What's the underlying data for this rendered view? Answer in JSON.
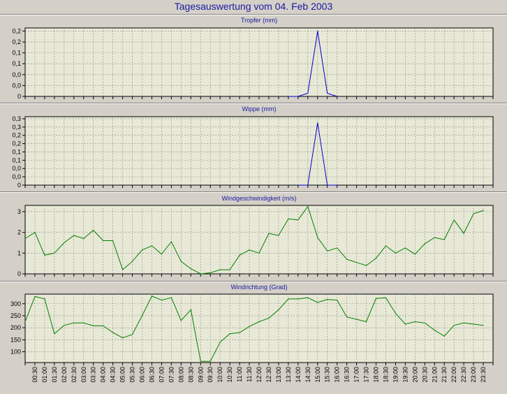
{
  "title": "Tagesauswertung vom 04. Feb 2003",
  "colors": {
    "background": "#d4d0c8",
    "plot_area": "#e8e8d6",
    "precip_line": "#0000cc",
    "wind_line": "#008000",
    "title_text": "#1a1aa0"
  },
  "chart_data": [
    {
      "type": "line",
      "title": "Tropfer (mm)",
      "y_tick_labels": [
        "0",
        "0,0",
        "0,0",
        "0,1",
        "0,1",
        "0,2",
        "0,2"
      ],
      "ylim": [
        0,
        0.22
      ],
      "grid": true,
      "series": [
        {
          "x": [
            "13:30",
            "14:00",
            "14:30",
            "15:00",
            "15:30",
            "16:00"
          ],
          "values": [
            0,
            0,
            0.01,
            0.21,
            0.01,
            0
          ]
        }
      ]
    },
    {
      "type": "line",
      "title": "Wippe (mm)",
      "y_tick_labels": [
        "0",
        "0,0",
        "0,0",
        "0,1",
        "0,1",
        "0,2",
        "0,2",
        "0,3",
        "0,3"
      ],
      "ylim": [
        0,
        0.33
      ],
      "grid": true,
      "series": [
        {
          "x": [
            "14:00",
            "14:30",
            "15:00",
            "15:30",
            "16:00"
          ],
          "values": [
            0,
            0,
            0.3,
            0,
            0
          ]
        }
      ]
    },
    {
      "type": "line",
      "title": "Windgeschwindigkeit (m/s)",
      "y_tick_labels": [
        "0",
        "1",
        "2",
        "3"
      ],
      "ylim": [
        0,
        3.3
      ],
      "grid": true,
      "series": [
        {
          "x": [
            "00:00",
            "00:30",
            "01:00",
            "01:30",
            "02:00",
            "02:30",
            "03:00",
            "03:30",
            "04:00",
            "04:30",
            "05:00",
            "05:30",
            "06:00",
            "06:30",
            "07:00",
            "07:30",
            "08:00",
            "08:30",
            "09:00",
            "09:30",
            "10:00",
            "10:30",
            "11:00",
            "11:30",
            "12:00",
            "12:30",
            "13:00",
            "13:30",
            "14:00",
            "14:30",
            "15:00",
            "15:30",
            "16:00",
            "16:30",
            "17:00",
            "17:30",
            "18:00",
            "18:30",
            "19:00",
            "19:30",
            "20:00",
            "20:30",
            "21:00",
            "21:30",
            "22:00",
            "22:30",
            "23:00",
            "23:30"
          ],
          "values": [
            1.7,
            2.0,
            0.9,
            1.0,
            1.5,
            1.85,
            1.7,
            2.1,
            1.6,
            1.6,
            0.2,
            0.6,
            1.15,
            1.35,
            0.95,
            1.55,
            0.6,
            0.25,
            0.0,
            0.05,
            0.2,
            0.2,
            0.9,
            1.15,
            1.0,
            1.95,
            1.85,
            2.65,
            2.6,
            3.25,
            1.75,
            1.1,
            1.25,
            0.7,
            0.55,
            0.4,
            0.75,
            1.35,
            1.0,
            1.25,
            0.95,
            1.45,
            1.75,
            1.65,
            2.6,
            1.95,
            2.9,
            3.05
          ]
        }
      ]
    },
    {
      "type": "line",
      "title": "Windrichtung (Grad)",
      "y_tick_labels": [
        "100",
        "150",
        "200",
        "250",
        "300"
      ],
      "ylim": [
        55,
        340
      ],
      "grid": true,
      "x_tick_labels": [
        "00:30",
        "01:00",
        "01:30",
        "02:00",
        "02:30",
        "03:00",
        "03:30",
        "04:00",
        "04:30",
        "05:00",
        "05:30",
        "06:00",
        "06:30",
        "07:00",
        "07:30",
        "08:00",
        "08:30",
        "09:00",
        "09:30",
        "10:00",
        "10:30",
        "11:00",
        "11:30",
        "12:00",
        "12:30",
        "13:00",
        "13:30",
        "14:00",
        "14:30",
        "15:00",
        "15:30",
        "16:00",
        "16:30",
        "17:00",
        "17:30",
        "18:00",
        "18:30",
        "19:00",
        "19:30",
        "20:00",
        "20:30",
        "21:00",
        "21:30",
        "22:00",
        "22:30",
        "23:00",
        "23:30"
      ],
      "series": [
        {
          "x": [
            "00:00",
            "00:30",
            "01:00",
            "01:30",
            "02:00",
            "02:30",
            "03:00",
            "03:30",
            "04:00",
            "04:30",
            "05:00",
            "05:30",
            "06:00",
            "06:30",
            "07:00",
            "07:30",
            "08:00",
            "08:30",
            "09:00",
            "09:30",
            "10:00",
            "10:30",
            "11:00",
            "11:30",
            "12:00",
            "12:30",
            "13:00",
            "13:30",
            "14:00",
            "14:30",
            "15:00",
            "15:30",
            "16:00",
            "16:30",
            "17:00",
            "17:30",
            "18:00",
            "18:30",
            "19:00",
            "19:30",
            "20:00",
            "20:30",
            "21:00",
            "21:30",
            "22:00",
            "22:30",
            "23:00",
            "23:30"
          ],
          "values": [
            225,
            330,
            320,
            175,
            210,
            220,
            220,
            208,
            208,
            180,
            158,
            172,
            250,
            332,
            315,
            325,
            230,
            275,
            60,
            60,
            140,
            175,
            180,
            205,
            225,
            240,
            275,
            320,
            320,
            325,
            305,
            318,
            315,
            245,
            235,
            225,
            322,
            325,
            260,
            215,
            225,
            220,
            190,
            165,
            210,
            220,
            215,
            210
          ]
        }
      ]
    }
  ]
}
